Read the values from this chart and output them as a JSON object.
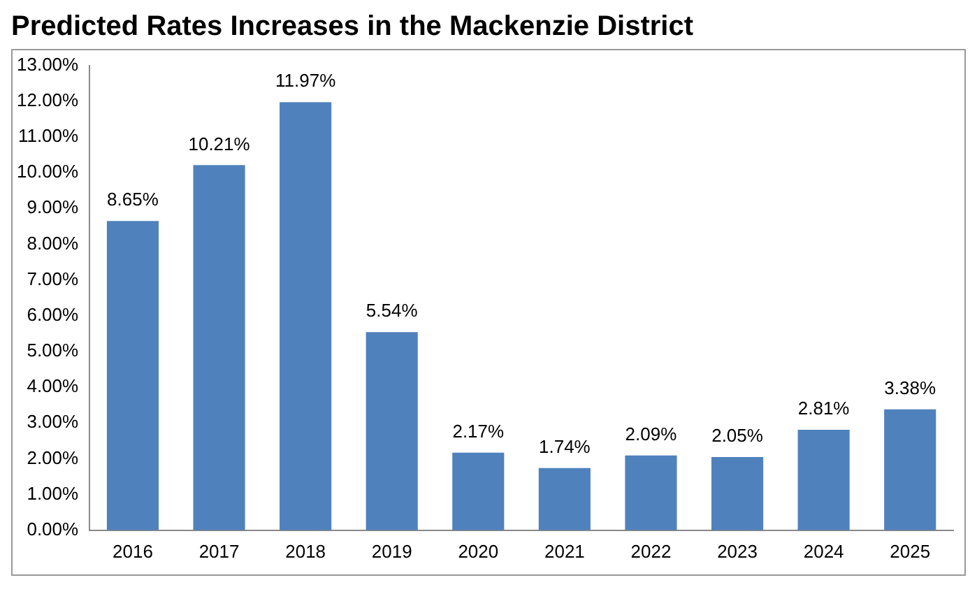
{
  "chart_data": {
    "type": "bar",
    "title": "Predicted Rates Increases in the Mackenzie District",
    "categories": [
      "2016",
      "2017",
      "2018",
      "2019",
      "2020",
      "2021",
      "2022",
      "2023",
      "2024",
      "2025"
    ],
    "series": [
      {
        "color": "#4f81bd",
        "values": [
          8.65,
          10.21,
          11.97,
          5.54,
          2.17,
          1.74,
          2.09,
          2.05,
          2.81,
          3.38
        ],
        "value_labels": [
          "8.65%",
          "10.21%",
          "11.97%",
          "5.54%",
          "2.17%",
          "1.74%",
          "2.09%",
          "2.05%",
          "2.81%",
          "3.38%"
        ]
      }
    ],
    "ylim": [
      0,
      13
    ],
    "yticks": [
      {
        "value": 0,
        "label": "0.00%"
      },
      {
        "value": 1,
        "label": "1.00%"
      },
      {
        "value": 2,
        "label": "2.00%"
      },
      {
        "value": 3,
        "label": "3.00%"
      },
      {
        "value": 4,
        "label": "4.00%"
      },
      {
        "value": 5,
        "label": "5.00%"
      },
      {
        "value": 6,
        "label": "6.00%"
      },
      {
        "value": 7,
        "label": "7.00%"
      },
      {
        "value": 8,
        "label": "8.00%"
      },
      {
        "value": 9,
        "label": "9.00%"
      },
      {
        "value": 10,
        "label": "10.00%"
      },
      {
        "value": 11,
        "label": "11.00%"
      },
      {
        "value": 12,
        "label": "12.00%"
      },
      {
        "value": 13,
        "label": "13.00%"
      }
    ],
    "grid": false,
    "legend": false
  }
}
